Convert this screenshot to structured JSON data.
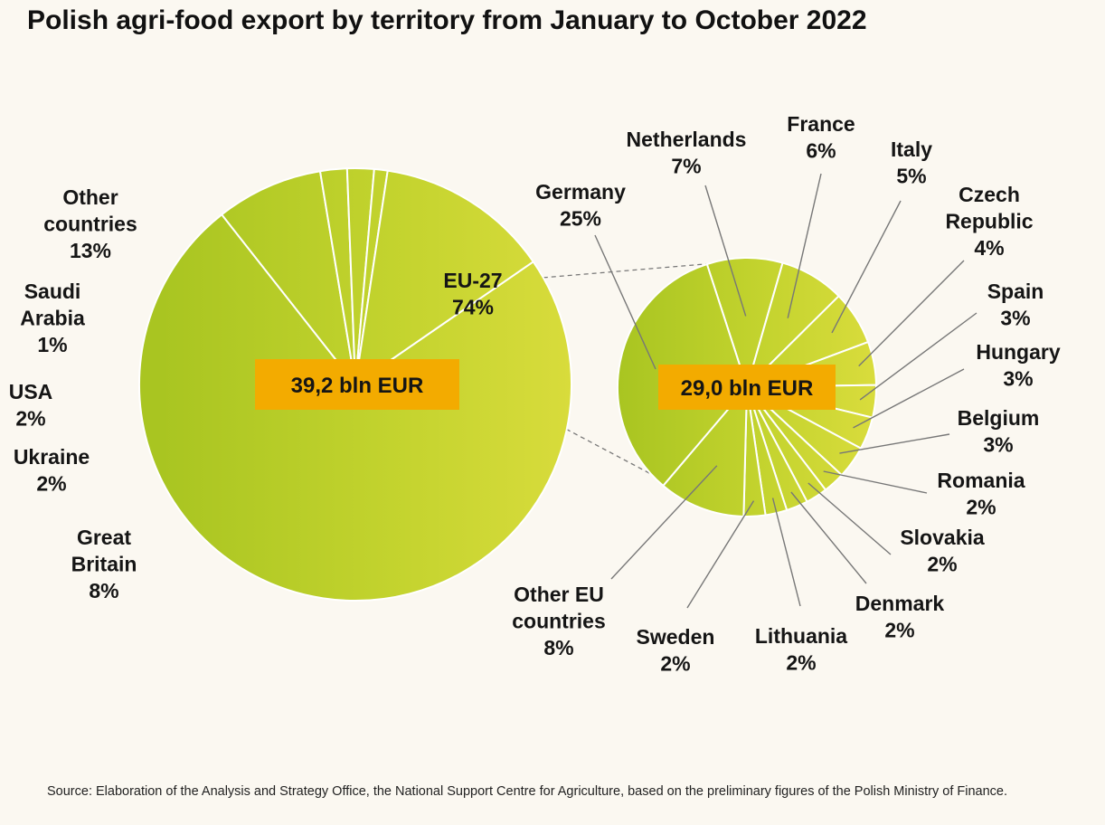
{
  "title": "Polish agri-food export by territory from January to October 2022",
  "source": "Source: Elaboration of the  Analysis and Strategy Office, the National Support Centre for Agriculture, based on the preliminary figures of the Polish Ministry of Finance.",
  "chart_data": [
    {
      "type": "pie",
      "total_label": "39,2 bln EUR",
      "slices": [
        {
          "label": [
            "EU-27"
          ],
          "percent_text": "74%",
          "value": 74
        },
        {
          "label": [
            "Great",
            "Britain"
          ],
          "percent_text": "8%",
          "value": 8
        },
        {
          "label": [
            "Ukraine"
          ],
          "percent_text": "2%",
          "value": 2
        },
        {
          "label": [
            "USA"
          ],
          "percent_text": "2%",
          "value": 2
        },
        {
          "label": [
            "Saudi",
            "Arabia"
          ],
          "percent_text": "1%",
          "value": 1
        },
        {
          "label": [
            "Other",
            "countries"
          ],
          "percent_text": "13%",
          "value": 13
        }
      ]
    },
    {
      "type": "pie",
      "total_label": "29,0 bln EUR",
      "slices": [
        {
          "label": [
            "Netherlands"
          ],
          "percent_text": "7%",
          "value": 7
        },
        {
          "label": [
            "France"
          ],
          "percent_text": "6%",
          "value": 6
        },
        {
          "label": [
            "Italy"
          ],
          "percent_text": "5%",
          "value": 5
        },
        {
          "label": [
            "Czech",
            "Republic"
          ],
          "percent_text": "4%",
          "value": 4
        },
        {
          "label": [
            "Spain"
          ],
          "percent_text": "3%",
          "value": 3
        },
        {
          "label": [
            "Hungary"
          ],
          "percent_text": "3%",
          "value": 3
        },
        {
          "label": [
            "Belgium"
          ],
          "percent_text": "3%",
          "value": 3
        },
        {
          "label": [
            "Romania"
          ],
          "percent_text": "2%",
          "value": 2
        },
        {
          "label": [
            "Slovakia"
          ],
          "percent_text": "2%",
          "value": 2
        },
        {
          "label": [
            "Denmark"
          ],
          "percent_text": "2%",
          "value": 2
        },
        {
          "label": [
            "Lithuania"
          ],
          "percent_text": "2%",
          "value": 2
        },
        {
          "label": [
            "Sweden"
          ],
          "percent_text": "2%",
          "value": 2
        },
        {
          "label": [
            "Other EU",
            "countries"
          ],
          "percent_text": "8%",
          "value": 8
        },
        {
          "label": [
            "Germany"
          ],
          "percent_text": "25%",
          "value": 25
        }
      ]
    }
  ],
  "colors": {
    "background": "#fbf8f1",
    "slice_dark": "#a9c521",
    "slice_light": "#d9dc3c",
    "total_box": "#f3ab00",
    "leader_line": "#777777"
  }
}
